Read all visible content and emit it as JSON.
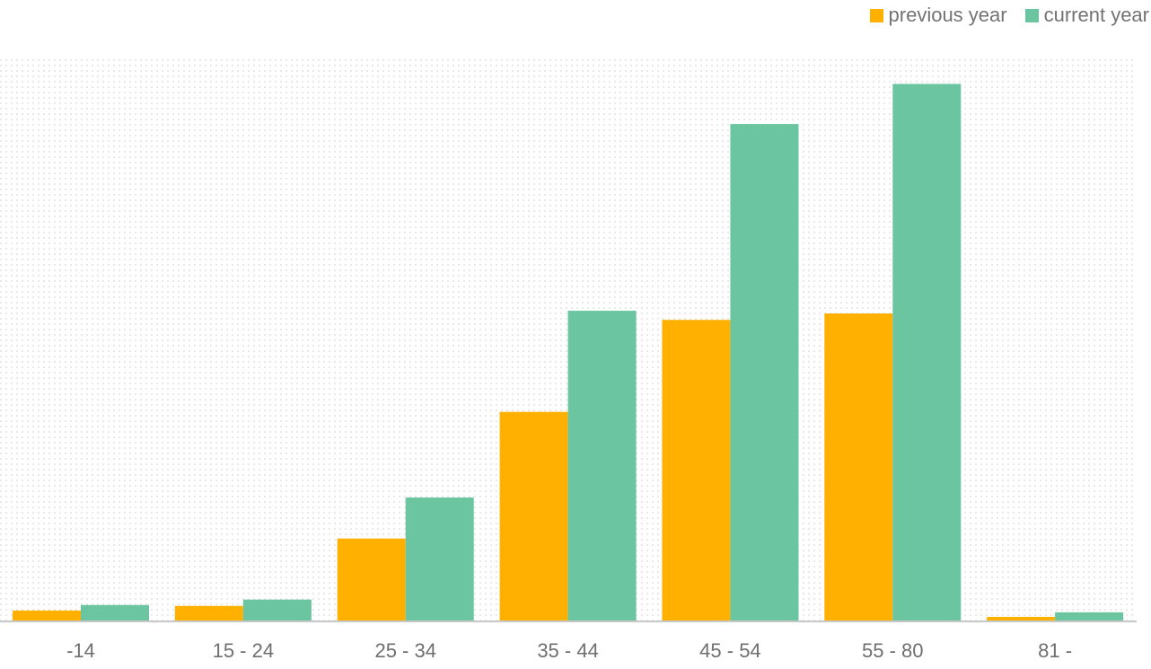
{
  "chart_data": {
    "type": "bar",
    "title": "",
    "xlabel": "",
    "ylabel": "",
    "categories": [
      "-14",
      "15 - 24",
      "25 - 34",
      "35 - 44",
      "45 - 54",
      "55 - 80",
      "81 -"
    ],
    "series": [
      {
        "name": "previous year",
        "color": "#ffb000",
        "values": [
          1.1,
          1.6,
          9.0,
          22.9,
          33.0,
          33.7,
          0.4
        ]
      },
      {
        "name": "current year",
        "color": "#6bc5a0",
        "values": [
          1.7,
          2.3,
          13.5,
          34.0,
          54.5,
          58.9,
          0.9
        ]
      }
    ],
    "ylim": [
      0,
      62
    ],
    "grid": "dotted",
    "legend": "top-right"
  }
}
